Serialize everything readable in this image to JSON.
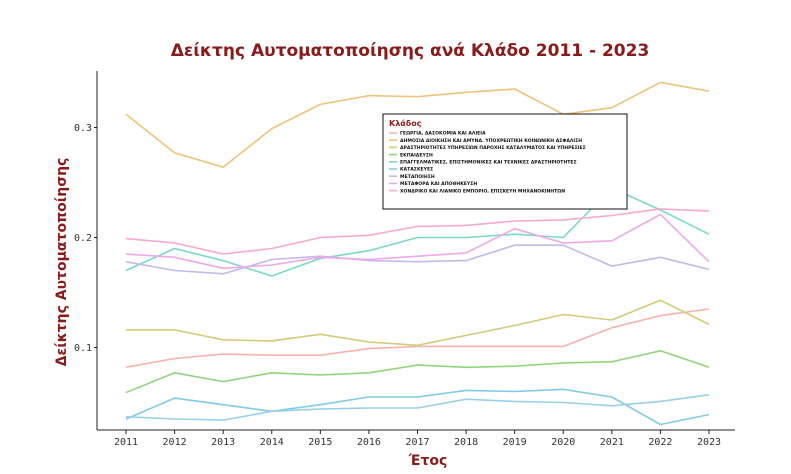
{
  "chart_data": {
    "type": "line",
    "title": "Δείκτης Αυτοματοποίησης ανά Κλάδο 2011 - 2023",
    "xlabel": "Έτος",
    "ylabel": "Δείκτης Αυτοματοποίησης",
    "x": [
      2011,
      2012,
      2013,
      2014,
      2015,
      2016,
      2017,
      2018,
      2019,
      2020,
      2021,
      2022,
      2023
    ],
    "x_ticks": [
      "2011",
      "2012",
      "2013",
      "2014",
      "2015",
      "2016",
      "2017",
      "2018",
      "2019",
      "2020",
      "2021",
      "2022",
      "2023"
    ],
    "y_ticks": [
      "0.1",
      "0.2",
      "0.3"
    ],
    "y_tick_values": [
      0.1,
      0.2,
      0.3
    ],
    "ylim": [
      0.025,
      0.355
    ],
    "grid": false,
    "legend_title": "Κλάδος",
    "legend_position": "top-right",
    "series": [
      {
        "name": "ΓΕΩΡΓΙΑ, ΔΑΣΟΚΟΜΙΑ ΚΑΙ ΑΛΙΕΙΑ",
        "color": "#f8b3a8",
        "values": [
          0.082,
          0.09,
          0.094,
          0.093,
          0.093,
          0.099,
          0.101,
          0.101,
          0.101,
          0.101,
          0.118,
          0.129,
          0.135
        ]
      },
      {
        "name": "ΔΗΜΟΣΙΑ ΔΙΟΙΚΗΣΗ ΚΑΙ ΑΜΥΝΑ. ΥΠΟΧΡΕΩΤΙΚΗ ΚΟΙΝΩΝΙΚΗ ΑΣΦΑΛΙΣΗ",
        "color": "#f0c27a",
        "values": [
          0.312,
          0.277,
          0.264,
          0.299,
          0.321,
          0.329,
          0.328,
          0.332,
          0.335,
          0.312,
          0.318,
          0.341,
          0.333
        ]
      },
      {
        "name": "ΔΡΑΣΤΗΡΙΟΤΗΤΕΣ ΥΠΗΡΕΣΙΩΝ ΠΑΡΟΧΗΣ ΚΑΤΑΛΥΜΑΤΟΣ ΚΑΙ ΥΠΗΡΕΣΙΕΣ",
        "color": "#d6c97a",
        "values": [
          0.116,
          0.116,
          0.107,
          0.106,
          0.112,
          0.105,
          0.102,
          0.111,
          0.12,
          0.13,
          0.125,
          0.143,
          0.121
        ]
      },
      {
        "name": "ΕΚΠΑΙΔΕΥΣΗ",
        "color": "#8fd67a",
        "values": [
          0.059,
          0.077,
          0.069,
          0.077,
          0.075,
          0.077,
          0.084,
          0.082,
          0.083,
          0.086,
          0.087,
          0.097,
          0.082
        ]
      },
      {
        "name": "ΕΠΑΓΓΕΛΜΑΤΙΚΕΣ, ΕΠΙΣΤΗΜΟΝΙΚΕΣ ΚΑΙ ΤΕΧΝΙΚΕΣ ΔΡΑΣΤΗΡΙΟΤΗΤΕΣ",
        "color": "#7ad9c9",
        "values": [
          0.17,
          0.19,
          0.179,
          0.165,
          0.181,
          0.188,
          0.2,
          0.2,
          0.203,
          0.2,
          0.245,
          0.225,
          0.203
        ]
      },
      {
        "name": "ΚΑΤΑΣΚΕΥΕΣ",
        "color": "#80cbe8",
        "values": [
          0.035,
          0.054,
          0.048,
          0.042,
          0.048,
          0.055,
          0.055,
          0.061,
          0.06,
          0.062,
          0.055,
          0.03,
          0.039
        ]
      },
      {
        "name": "ΜΕΤΑΠΟΙΗΣΗ",
        "color": "#c4b8ec",
        "values": [
          0.178,
          0.17,
          0.167,
          0.18,
          0.183,
          0.179,
          0.178,
          0.179,
          0.193,
          0.193,
          0.174,
          0.182,
          0.171
        ]
      },
      {
        "name": "ΜΕΤΑΦΟΡΑ ΚΑΙ ΑΠΟΘΗΚΕΥΣΗ",
        "color": "#f0a8e8",
        "values": [
          0.185,
          0.182,
          0.172,
          0.175,
          0.182,
          0.18,
          0.183,
          0.186,
          0.208,
          0.195,
          0.197,
          0.221,
          0.178
        ]
      },
      {
        "name": "ΧΟΝΔΡΙΚΟ ΚΑΙ ΛΙΑΝΙΚΟ ΕΜΠΟΡΙΟ, ΕΠΙΣΚΕΥΗ ΜΗΧΑΝΟΚΙΝΗΤΩΝ",
        "color": "#f7a8d4",
        "values": [
          0.199,
          0.195,
          0.185,
          0.19,
          0.2,
          0.202,
          0.21,
          0.211,
          0.215,
          0.216,
          0.22,
          0.226,
          0.224
        ]
      },
      {
        "name": "",
        "color": "#9ad0ec",
        "values": [
          0.037,
          0.035,
          0.034,
          0.042,
          0.044,
          0.045,
          0.045,
          0.053,
          0.051,
          0.05,
          0.047,
          0.051,
          0.057
        ]
      }
    ]
  }
}
